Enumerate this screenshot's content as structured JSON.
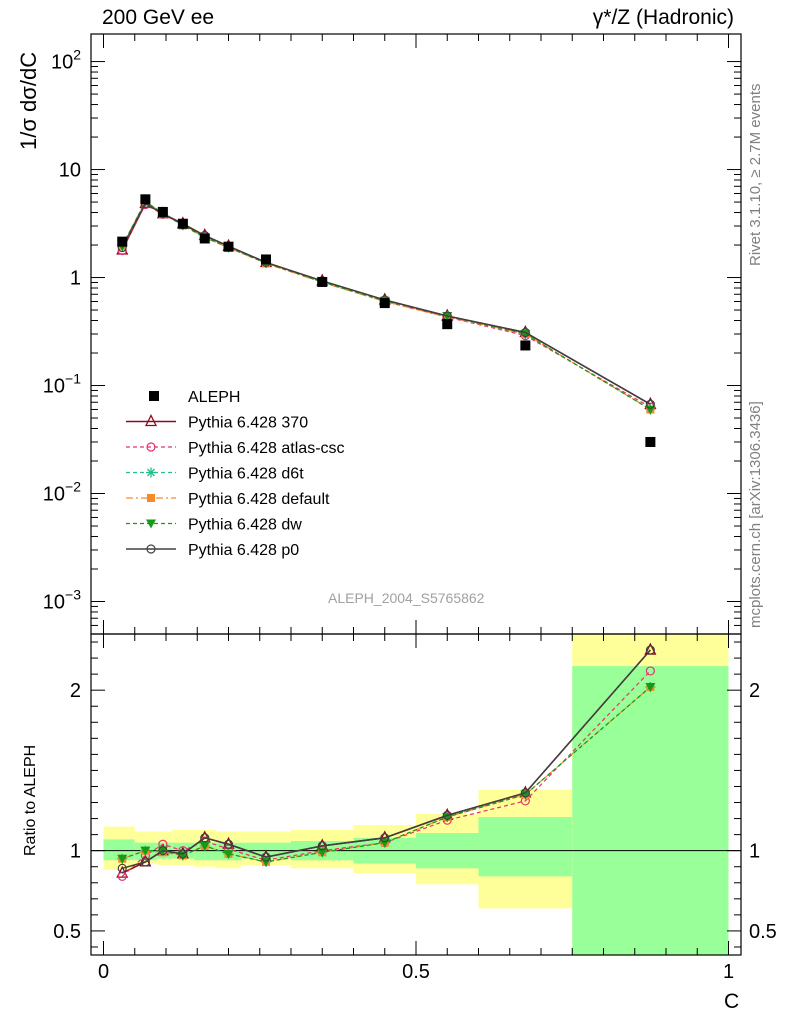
{
  "header": {
    "title_left": "200 GeV ee",
    "title_right": "γ*/Z (Hadronic)"
  },
  "side_text": {
    "rivet": "Rivet 3.1.10, ≥ 2.7M events",
    "mcplots": "mcplots.cern.ch [arXiv:1306.3436]"
  },
  "analysis_id": "ALEPH_2004_S5765862",
  "colors": {
    "data": "#000000",
    "p370": "#8b0b1f",
    "atlas_csc": "#e8316b",
    "d6t": "#22c08f",
    "default": "#f58a2a",
    "dw": "#159c15",
    "p0": "#404040",
    "band_inner": "#99ff99",
    "band_outer": "#ffff99"
  },
  "chart_data": [
    {
      "type": "line",
      "panel": "main",
      "ylabel": "1/σ  dσ/dC",
      "yscale": "log",
      "ylim": [
        0.0005,
        180
      ],
      "xlim": [
        -0.02,
        1.02
      ],
      "yticks": [
        {
          "value": 0.001,
          "base": "10",
          "exp": "−3"
        },
        {
          "value": 0.01,
          "base": "10",
          "exp": "−2"
        },
        {
          "value": 0.1,
          "base": "10",
          "exp": "−1"
        },
        {
          "value": 1,
          "base": "1",
          "exp": ""
        },
        {
          "value": 10,
          "base": "10",
          "exp": ""
        },
        {
          "value": 100,
          "base": "10",
          "exp": "2"
        }
      ],
      "x": [
        0.03,
        0.067,
        0.095,
        0.127,
        0.162,
        0.2,
        0.26,
        0.35,
        0.45,
        0.55,
        0.675,
        0.875
      ],
      "data": {
        "name": "ALEPH",
        "values": [
          2.15,
          5.3,
          4.05,
          3.15,
          2.3,
          1.93,
          1.47,
          0.91,
          0.58,
          0.37,
          0.235,
          0.03
        ]
      },
      "series": [
        {
          "name": "Pythia 6.428 370",
          "key": "p370",
          "values": [
            1.8,
            4.85,
            3.9,
            3.15,
            2.45,
            1.95,
            1.38,
            0.93,
            0.62,
            0.44,
            0.31,
            0.067
          ]
        },
        {
          "name": "Pythia 6.428 atlas-csc",
          "key": "atlas_csc",
          "values": [
            1.78,
            4.75,
            3.85,
            3.1,
            2.4,
            1.92,
            1.37,
            0.91,
            0.6,
            0.43,
            0.29,
            0.063
          ]
        },
        {
          "name": "Pythia 6.428 d6t",
          "key": "d6t",
          "values": [
            1.95,
            5.05,
            3.95,
            3.05,
            2.35,
            1.9,
            1.36,
            0.91,
            0.61,
            0.44,
            0.3,
            0.06
          ]
        },
        {
          "name": "Pythia 6.428 default",
          "key": "default",
          "values": [
            1.97,
            5.1,
            3.9,
            3.03,
            2.35,
            1.89,
            1.35,
            0.9,
            0.6,
            0.43,
            0.3,
            0.06
          ]
        },
        {
          "name": "Pythia 6.428 dw",
          "key": "dw",
          "values": [
            1.95,
            5.05,
            3.95,
            3.05,
            2.35,
            1.9,
            1.36,
            0.91,
            0.61,
            0.44,
            0.3,
            0.06
          ]
        },
        {
          "name": "Pythia 6.428 p0",
          "key": "p0",
          "values": [
            1.9,
            4.85,
            3.9,
            3.1,
            2.45,
            1.95,
            1.38,
            0.93,
            0.62,
            0.44,
            0.31,
            0.067
          ]
        }
      ]
    },
    {
      "type": "line",
      "panel": "ratio",
      "xlabel": "C",
      "ylabel": "Ratio to ALEPH",
      "ylim": [
        0.35,
        2.35
      ],
      "xlim": [
        -0.02,
        1.02
      ],
      "xticks": [
        0,
        0.5,
        1
      ],
      "xtick_labels": [
        "0",
        "0.5",
        "1"
      ],
      "yticks": [
        0.5,
        1,
        2
      ],
      "ytick_labels": [
        "0.5",
        "1",
        "2"
      ],
      "bins": [
        {
          "lo": 0.0,
          "hi": 0.05,
          "inner": [
            0.94,
            1.07
          ],
          "outer": [
            0.88,
            1.15
          ]
        },
        {
          "lo": 0.05,
          "hi": 0.085,
          "inner": [
            0.94,
            1.05
          ],
          "outer": [
            0.92,
            1.12
          ]
        },
        {
          "lo": 0.085,
          "hi": 0.11,
          "inner": [
            0.95,
            1.05
          ],
          "outer": [
            0.91,
            1.12
          ]
        },
        {
          "lo": 0.11,
          "hi": 0.145,
          "inner": [
            0.95,
            1.05
          ],
          "outer": [
            0.91,
            1.13
          ]
        },
        {
          "lo": 0.145,
          "hi": 0.18,
          "inner": [
            0.94,
            1.05
          ],
          "outer": [
            0.9,
            1.13
          ]
        },
        {
          "lo": 0.18,
          "hi": 0.22,
          "inner": [
            0.94,
            1.05
          ],
          "outer": [
            0.89,
            1.12
          ]
        },
        {
          "lo": 0.22,
          "hi": 0.3,
          "inner": [
            0.95,
            1.05
          ],
          "outer": [
            0.91,
            1.12
          ]
        },
        {
          "lo": 0.3,
          "hi": 0.4,
          "inner": [
            0.94,
            1.06
          ],
          "outer": [
            0.89,
            1.13
          ]
        },
        {
          "lo": 0.4,
          "hi": 0.5,
          "inner": [
            0.92,
            1.08
          ],
          "outer": [
            0.86,
            1.16
          ]
        },
        {
          "lo": 0.5,
          "hi": 0.6,
          "inner": [
            0.89,
            1.11
          ],
          "outer": [
            0.79,
            1.23
          ]
        },
        {
          "lo": 0.6,
          "hi": 0.75,
          "inner": [
            0.84,
            1.21
          ],
          "outer": [
            0.64,
            1.38
          ]
        },
        {
          "lo": 0.75,
          "hi": 1.0,
          "inner": [
            0.35,
            2.15
          ],
          "outer": [
            0.35,
            2.35
          ]
        }
      ],
      "x": [
        0.03,
        0.067,
        0.095,
        0.127,
        0.162,
        0.2,
        0.26,
        0.35,
        0.45,
        0.55,
        0.675,
        0.875
      ],
      "series": [
        {
          "name": "Pythia 6.428 370",
          "key": "p370",
          "values": [
            0.86,
            0.93,
            1.0,
            0.98,
            1.08,
            1.04,
            0.96,
            1.03,
            1.08,
            1.22,
            1.36,
            2.25
          ]
        },
        {
          "name": "Pythia 6.428 atlas-csc",
          "key": "atlas_csc",
          "values": [
            0.84,
            0.97,
            1.04,
            1.0,
            1.06,
            1.01,
            0.94,
            1.0,
            1.05,
            1.19,
            1.31,
            2.12
          ]
        },
        {
          "name": "Pythia 6.428 d6t",
          "key": "d6t",
          "values": [
            0.95,
            1.0,
            1.0,
            0.97,
            1.03,
            0.98,
            0.93,
            0.99,
            1.05,
            1.21,
            1.35,
            2.02
          ]
        },
        {
          "name": "Pythia 6.428 default",
          "key": "default",
          "values": [
            0.95,
            1.0,
            0.99,
            0.97,
            1.03,
            0.98,
            0.93,
            0.99,
            1.05,
            1.21,
            1.35,
            2.02
          ]
        },
        {
          "name": "Pythia 6.428 dw",
          "key": "dw",
          "values": [
            0.95,
            1.0,
            1.0,
            0.97,
            1.03,
            0.98,
            0.93,
            0.99,
            1.05,
            1.21,
            1.35,
            2.02
          ]
        },
        {
          "name": "Pythia 6.428 p0",
          "key": "p0",
          "values": [
            0.89,
            0.93,
            1.0,
            0.98,
            1.08,
            1.04,
            0.96,
            1.03,
            1.08,
            1.22,
            1.36,
            2.25
          ]
        }
      ]
    }
  ]
}
